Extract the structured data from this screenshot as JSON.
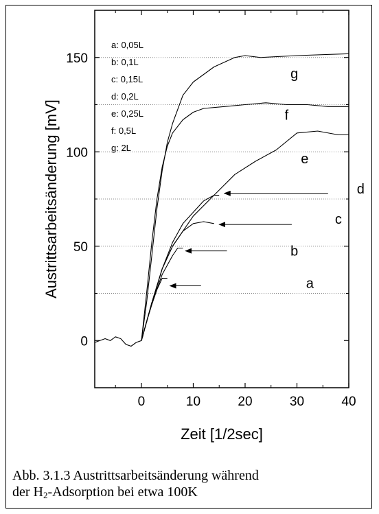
{
  "chart_data": {
    "type": "line",
    "xlabel": "Zeit [1/2sec]",
    "ylabel": "Austrittsarbeitsänderung [mV]",
    "xlim": [
      -9,
      40
    ],
    "ylim": [
      -25,
      175
    ],
    "xticks": [
      0,
      10,
      20,
      30,
      40
    ],
    "yticks": [
      0,
      50,
      100,
      150
    ],
    "reference_lines": [
      25,
      50,
      75,
      100,
      125,
      150
    ],
    "legend": [
      {
        "key": "a",
        "label": "0,05L"
      },
      {
        "key": "b",
        "label": "0,1L"
      },
      {
        "key": "c",
        "label": "0,15L"
      },
      {
        "key": "d",
        "label": "0,2L"
      },
      {
        "key": "e",
        "label": "0,25L"
      },
      {
        "key": "f",
        "label": "0,5L"
      },
      {
        "key": "g",
        "label": "2L"
      }
    ],
    "legend_position": "top-left",
    "series": [
      {
        "name": "a",
        "x": [
          0,
          1,
          2,
          3,
          4,
          5
        ],
        "y": [
          0,
          10,
          19,
          27,
          33,
          33
        ]
      },
      {
        "name": "b",
        "x": [
          0,
          2,
          4,
          6,
          7,
          8
        ],
        "y": [
          0,
          20,
          35,
          45,
          49,
          49
        ]
      },
      {
        "name": "c",
        "x": [
          0,
          2,
          4,
          6,
          8,
          10,
          12,
          14
        ],
        "y": [
          0,
          20,
          38,
          50,
          58,
          62,
          63,
          62
        ]
      },
      {
        "name": "d",
        "x": [
          0,
          2,
          4,
          6,
          8,
          10,
          12,
          14,
          15
        ],
        "y": [
          0,
          20,
          38,
          52,
          62,
          68,
          74,
          77,
          77
        ]
      },
      {
        "name": "e",
        "x": [
          0,
          2,
          4,
          6,
          8,
          10,
          14,
          18,
          22,
          26,
          30,
          34,
          38,
          40
        ],
        "y": [
          0,
          20,
          38,
          50,
          58,
          66,
          77,
          88,
          95,
          101,
          110,
          111,
          109,
          109
        ]
      },
      {
        "name": "f",
        "x": [
          0,
          1,
          2,
          3,
          4,
          5,
          6,
          8,
          10,
          12,
          16,
          20,
          24,
          28,
          32,
          36,
          40
        ],
        "y": [
          0,
          25,
          52,
          75,
          92,
          103,
          110,
          117,
          121,
          123,
          124,
          125,
          126,
          125,
          125,
          124,
          124
        ]
      },
      {
        "name": "g",
        "x": [
          0,
          1,
          2,
          3,
          4,
          5,
          6,
          8,
          10,
          14,
          18,
          20,
          23,
          30,
          40
        ],
        "y": [
          0,
          20,
          45,
          70,
          90,
          105,
          115,
          130,
          137,
          145,
          150,
          151,
          150,
          151,
          152
        ]
      },
      {
        "name": "pre",
        "x": [
          -9,
          -7,
          -6,
          -5,
          -4,
          -3,
          -2,
          -1,
          0
        ],
        "y": [
          -1,
          1,
          0,
          2,
          1,
          -2,
          -3,
          -1,
          0
        ]
      }
    ],
    "annotations": [
      {
        "label": "a",
        "x": 32.5,
        "y": 28,
        "arrow_from": [
          11.5,
          29
        ],
        "arrow_to": [
          5.5,
          29
        ]
      },
      {
        "label": "b",
        "x": 29.5,
        "y": 45,
        "arrow_from": [
          16.5,
          47.5
        ],
        "arrow_to": [
          8.5,
          47.5
        ]
      },
      {
        "label": "c",
        "x": 38,
        "y": 62,
        "arrow_from": [
          29,
          61.5
        ],
        "arrow_to": [
          15,
          61.5
        ]
      },
      {
        "label": "d",
        "x": 42.3,
        "y": 78,
        "arrow_from": [
          36,
          78
        ],
        "arrow_to": [
          16,
          78
        ]
      },
      {
        "label": "e",
        "x": 31.5,
        "y": 94,
        "arrow_from": null,
        "arrow_to": null
      },
      {
        "label": "f",
        "x": 28,
        "y": 117,
        "arrow_from": null,
        "arrow_to": null
      },
      {
        "label": "g",
        "x": 29.5,
        "y": 139,
        "arrow_from": null,
        "arrow_to": null
      }
    ]
  },
  "caption": {
    "line1": "Abb. 3.1.3 Austrittsarbeitsänderung während",
    "line2_pre": "der H",
    "line2_sub": "2",
    "line2_post": "-Adsorption bei etwa 100K"
  }
}
